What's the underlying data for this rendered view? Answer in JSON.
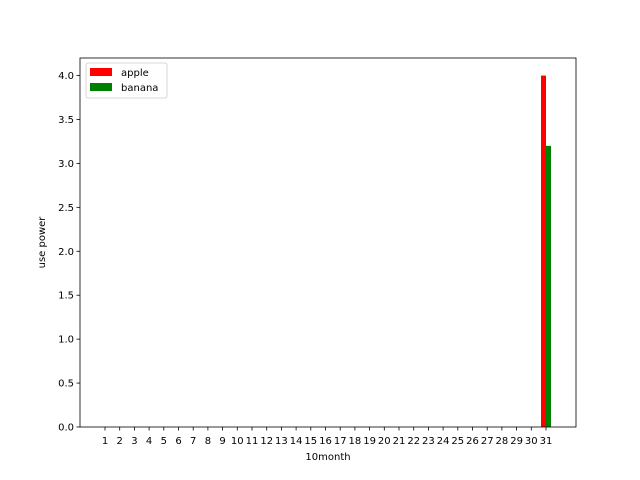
{
  "chart_data": {
    "type": "bar",
    "title": "",
    "xlabel": "10month",
    "ylabel": "use power",
    "categories": [
      "1",
      "2",
      "3",
      "4",
      "5",
      "6",
      "7",
      "8",
      "9",
      "10",
      "11",
      "12",
      "13",
      "14",
      "15",
      "16",
      "17",
      "18",
      "19",
      "20",
      "21",
      "22",
      "23",
      "24",
      "25",
      "26",
      "27",
      "28",
      "29",
      "30",
      "31"
    ],
    "series": [
      {
        "name": "apple",
        "color": "#ff0000",
        "values": [
          0,
          0,
          0,
          0,
          0,
          0,
          0,
          0,
          0,
          0,
          0,
          0,
          0,
          0,
          0,
          0,
          0,
          0,
          0,
          0,
          0,
          0,
          0,
          0,
          0,
          0,
          0,
          0,
          0,
          0,
          4.0
        ]
      },
      {
        "name": "banana",
        "color": "#008000",
        "values": [
          0,
          0,
          0,
          0,
          0,
          0,
          0,
          0,
          0,
          0,
          0,
          0,
          0,
          0,
          0,
          0,
          0,
          0,
          0,
          0,
          0,
          0,
          0,
          0,
          0,
          0,
          0,
          0,
          0,
          0,
          3.2
        ]
      }
    ],
    "ylim": [
      0,
      4.2
    ],
    "yticks": [
      "0.0",
      "0.5",
      "1.0",
      "1.5",
      "2.0",
      "2.5",
      "3.0",
      "3.5",
      "4.0"
    ],
    "grid": false,
    "legend_position": "top-left"
  }
}
